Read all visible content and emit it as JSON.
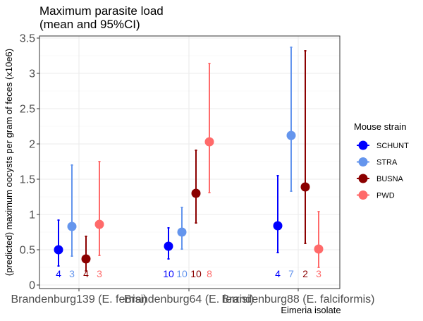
{
  "chart_data": {
    "type": "scatter",
    "title_line1": "Maximum parasite load",
    "title_line2": "(mean and 95%CI)",
    "xlabel": "Eimeria isolate",
    "ylabel": "(predicted) maximum oocysts per gram of feces (x10e6)",
    "ylim": [
      0,
      3.5
    ],
    "y_ticks": [
      "0",
      "0.5",
      "1",
      "1.5",
      "2",
      "2.5",
      "3",
      "3.5"
    ],
    "grid": true,
    "legend_title": "Mouse strain",
    "legend_position": "right",
    "categories": [
      "Brandenburg139 (E. ferrisi)",
      "Brandenburg64 (E. ferrisi)",
      "Brandenburg88 (E. falciformis)"
    ],
    "series": [
      {
        "name": "SCHUNT",
        "color": "#0000ff",
        "mean": [
          0.5,
          0.55,
          0.84
        ],
        "lower": [
          0.27,
          0.37,
          0.46
        ],
        "upper": [
          0.92,
          0.81,
          1.55
        ],
        "n": [
          "4",
          "10",
          "4"
        ]
      },
      {
        "name": "STRA",
        "color": "#6495ed",
        "mean": [
          0.83,
          0.75,
          2.12
        ],
        "lower": [
          0.41,
          0.51,
          1.33
        ],
        "upper": [
          1.7,
          1.1,
          3.37
        ],
        "n": [
          "3",
          "10",
          "7"
        ]
      },
      {
        "name": "BUSNA",
        "color": "#8b0000",
        "mean": [
          0.37,
          1.3,
          1.39
        ],
        "lower": [
          0.2,
          0.88,
          0.59
        ],
        "upper": [
          0.69,
          1.91,
          3.32
        ],
        "n": [
          "4",
          "10",
          "2"
        ]
      },
      {
        "name": "PWD",
        "color": "#ff6a6a",
        "mean": [
          0.86,
          2.03,
          0.51
        ],
        "lower": [
          0.42,
          1.31,
          0.25
        ],
        "upper": [
          1.75,
          3.14,
          1.04
        ],
        "n": [
          "3",
          "8",
          "3"
        ]
      }
    ]
  }
}
